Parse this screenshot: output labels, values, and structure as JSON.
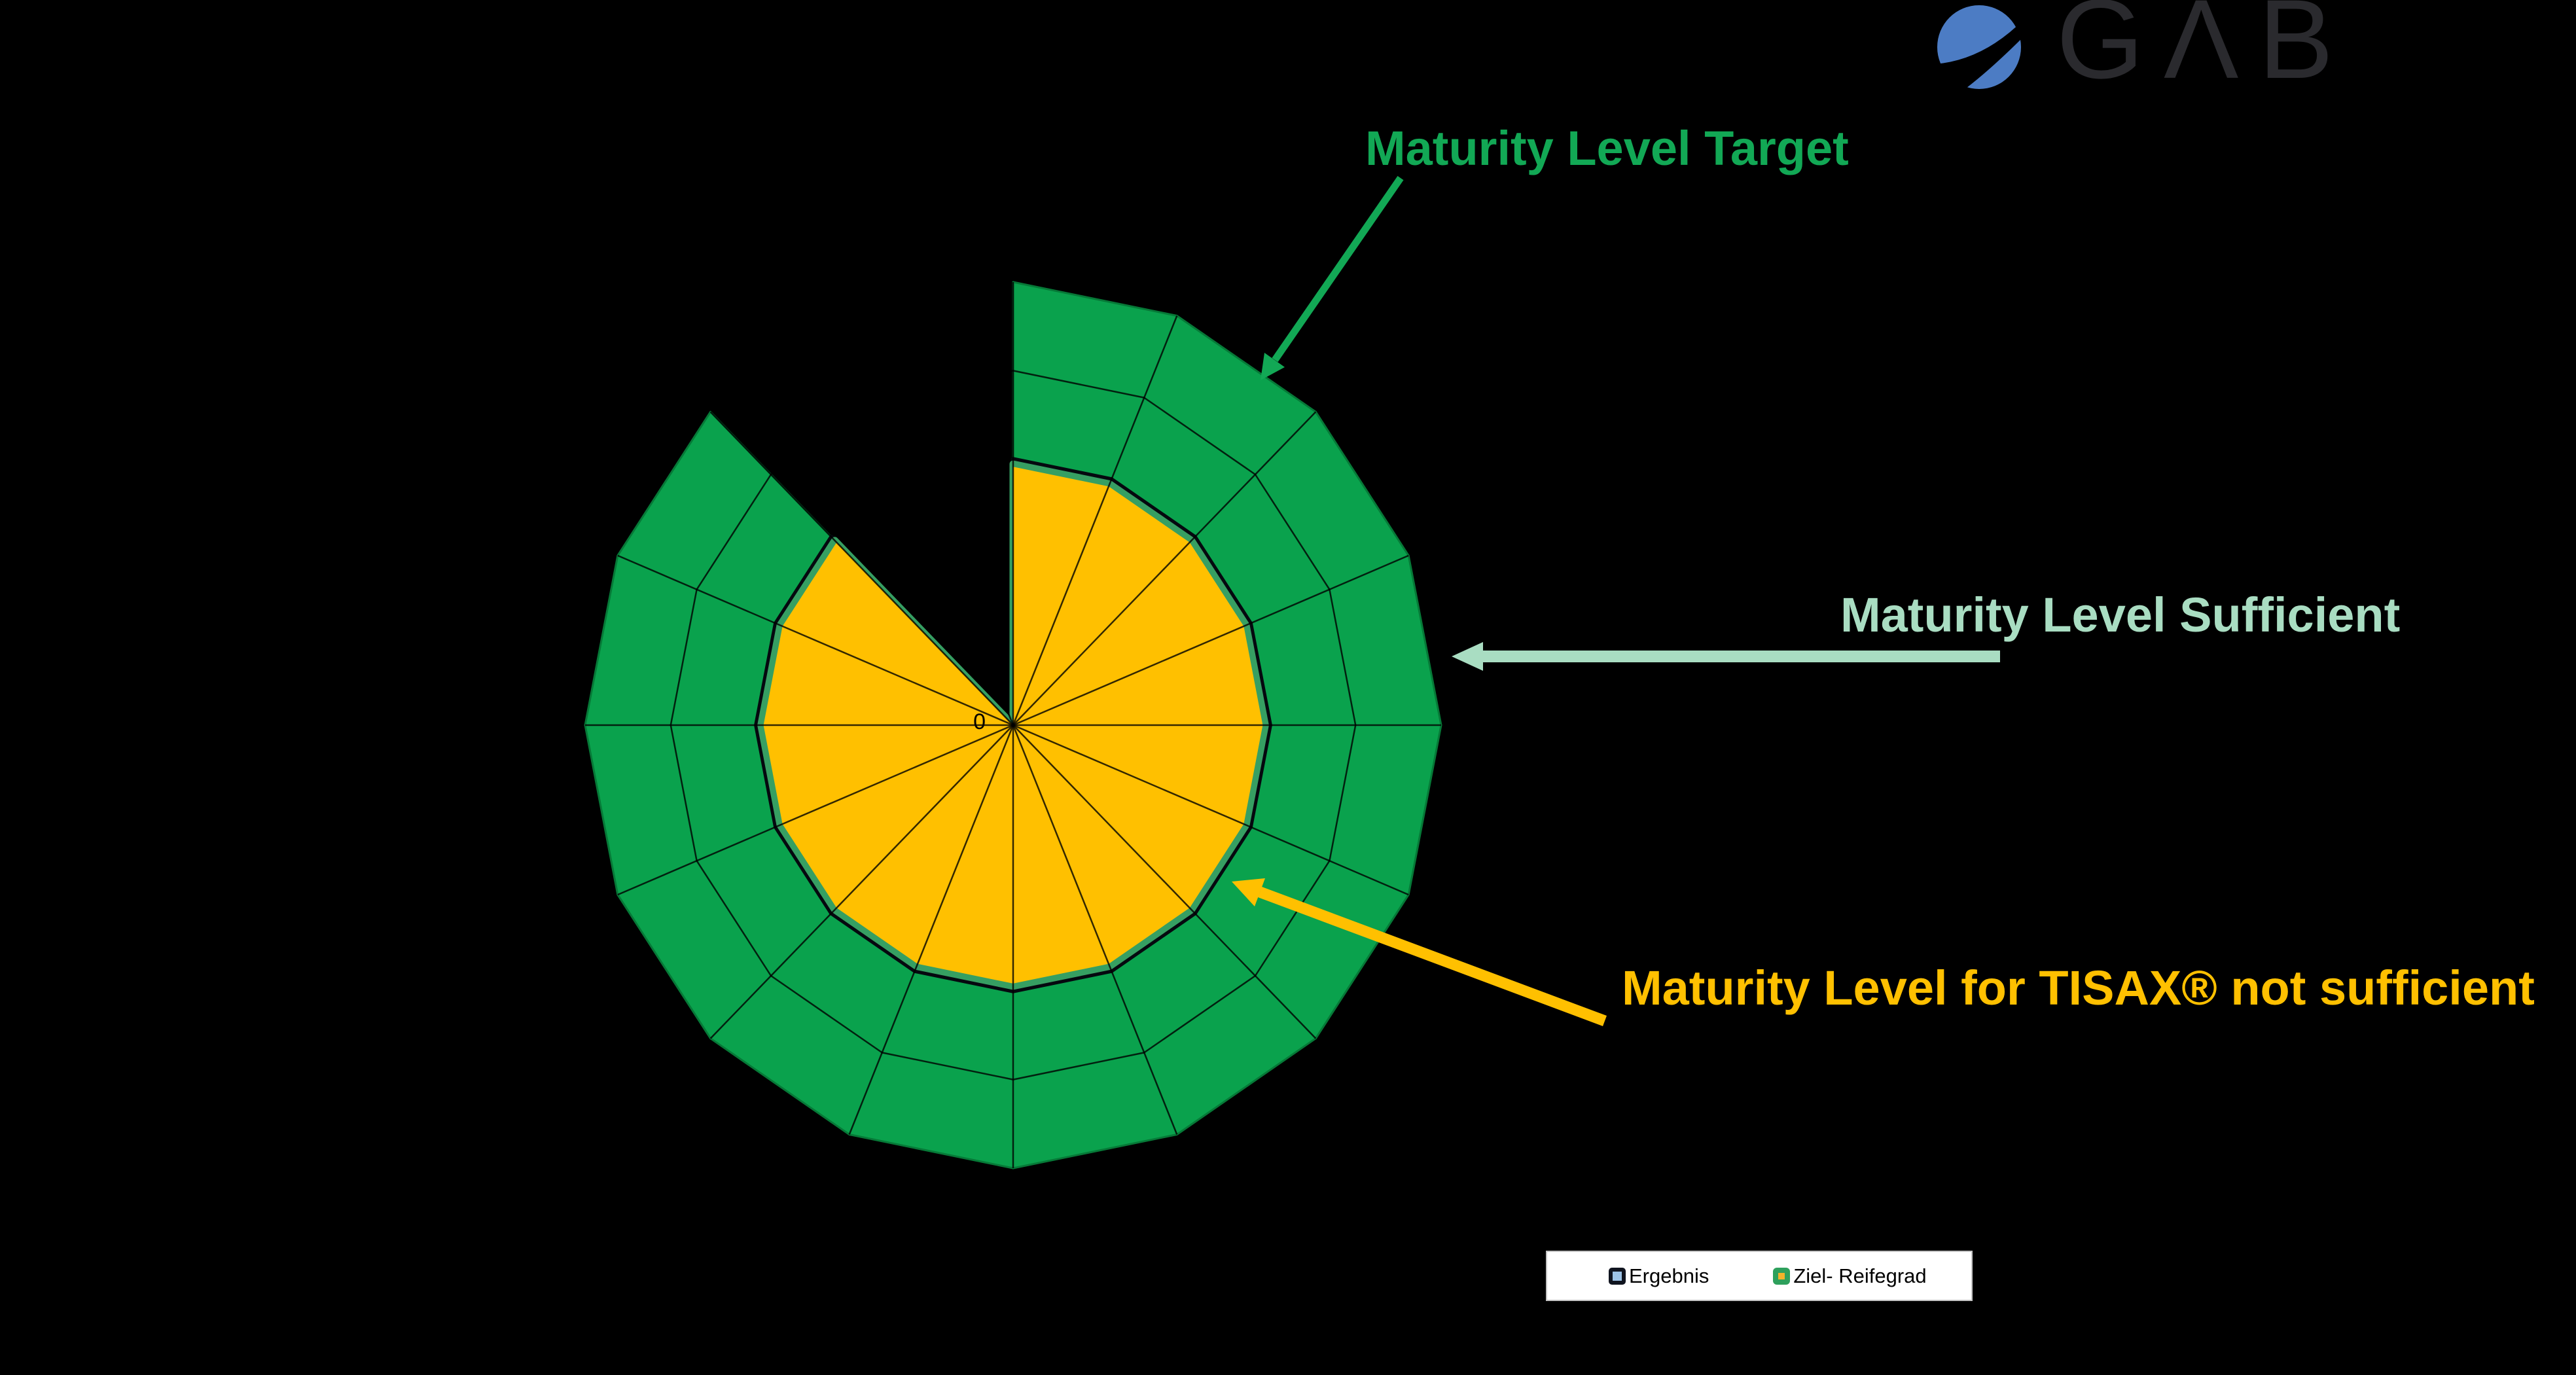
{
  "background_color": "#000000",
  "logo": {
    "brand": "GAB",
    "display": "GΛB",
    "circle_color": "#4C7CC4",
    "text_color": "#2A2A2E"
  },
  "annotations": {
    "target": {
      "label": "Maturity Level Target",
      "color": "#12A855"
    },
    "sufficient": {
      "label": "Maturity Level Sufficient",
      "color": "#A9DDC2"
    },
    "not_sufficient": {
      "label": "Maturity Level for TISAX® not sufficient",
      "color": "#FFC000"
    }
  },
  "legend": {
    "items": [
      {
        "label": "Ergebnis",
        "marker_border": "#10141F",
        "marker_fill": "#9DC3E6"
      },
      {
        "label": "Ziel- Reifegrad",
        "marker_border": "#2EA05C",
        "marker_fill": "#F2B32B"
      }
    ]
  },
  "chart_data": {
    "type": "radar",
    "subtype": "filled-radar",
    "spoke_count": 16,
    "angle_start_deg": 0,
    "angle_step_deg": 22.5,
    "angle_direction": "counterclockwise",
    "axis": {
      "min": 0,
      "max": 5,
      "major_unit": 1,
      "origin_label": "0",
      "visible_ring_gridline": 4,
      "spokes_visible": true
    },
    "series": [
      {
        "name": "Ergebnis",
        "fill": "#FFC000",
        "outline": "#05080F",
        "inner_band": "#369F62",
        "values": [
          3,
          3,
          3,
          3,
          3,
          0,
          3,
          3,
          3,
          3,
          3,
          3,
          3,
          3,
          3,
          3
        ]
      },
      {
        "name": "Ziel- Reifegrad",
        "fill": "#0AA24D",
        "outline": "#067937",
        "values": [
          5,
          5,
          5,
          5,
          5,
          0,
          5,
          5,
          5,
          5,
          5,
          5,
          5,
          5,
          5,
          5
        ]
      }
    ],
    "grid_color": "#000000",
    "legend_position": "bottom"
  }
}
